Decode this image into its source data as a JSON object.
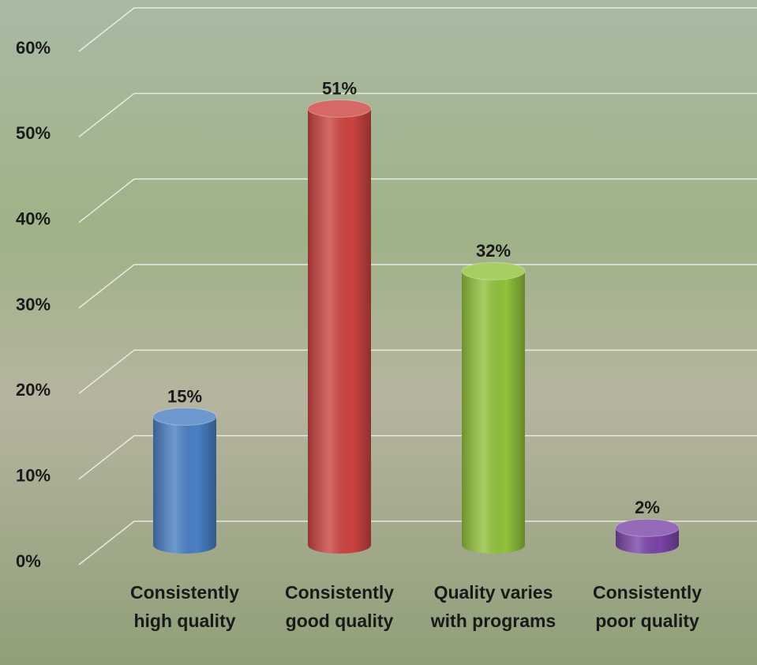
{
  "chart_data": {
    "type": "bar",
    "categories": [
      "Consistently high quality",
      "Consistently good quality",
      "Quality varies with programs",
      "Consistently poor quality"
    ],
    "values": [
      15,
      51,
      32,
      2
    ],
    "value_labels": [
      "15%",
      "51%",
      "32%",
      "2%"
    ],
    "colors": [
      "#4a80c4",
      "#cc4440",
      "#92c23c",
      "#7b45a8"
    ],
    "ylim": [
      0,
      60
    ],
    "yticks": [
      {
        "value": 0,
        "label": "0%"
      },
      {
        "value": 10,
        "label": "10%"
      },
      {
        "value": 20,
        "label": "20%"
      },
      {
        "value": 30,
        "label": "30%"
      },
      {
        "value": 40,
        "label": "40%"
      },
      {
        "value": 50,
        "label": "50%"
      },
      {
        "value": 60,
        "label": "60%"
      }
    ],
    "grid": true
  }
}
